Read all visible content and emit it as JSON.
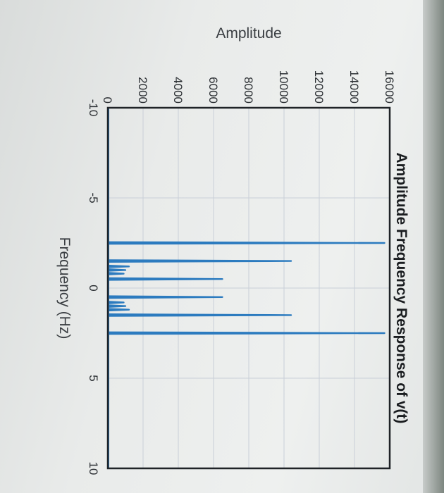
{
  "colors": {
    "series": "#2c7bbf",
    "grid": "#c9cfd8",
    "frame": "#1f2327"
  },
  "chart_data": {
    "type": "line",
    "title": "Amplitude Frequency Response of v(t)",
    "xlabel": "Frequency (Hz)",
    "ylabel": "Amplitude",
    "xlim": [
      -10,
      10
    ],
    "ylim": [
      0,
      16000
    ],
    "xticks": [
      "-10",
      "-5",
      "0",
      "5",
      "10"
    ],
    "yticks": [
      "0",
      "2000",
      "4000",
      "6000",
      "8000",
      "10000",
      "12000",
      "14000",
      "16000"
    ],
    "grid": true,
    "series": [
      {
        "x": [
          -2.5,
          -1.5,
          -1.2,
          -1.0,
          -0.8,
          -0.5,
          0.5,
          0.8,
          1.0,
          1.2,
          1.5,
          2.5
        ],
        "values": [
          15700,
          10400,
          1200,
          1000,
          900,
          6500,
          6500,
          900,
          1000,
          1200,
          10400,
          15700
        ]
      }
    ]
  }
}
